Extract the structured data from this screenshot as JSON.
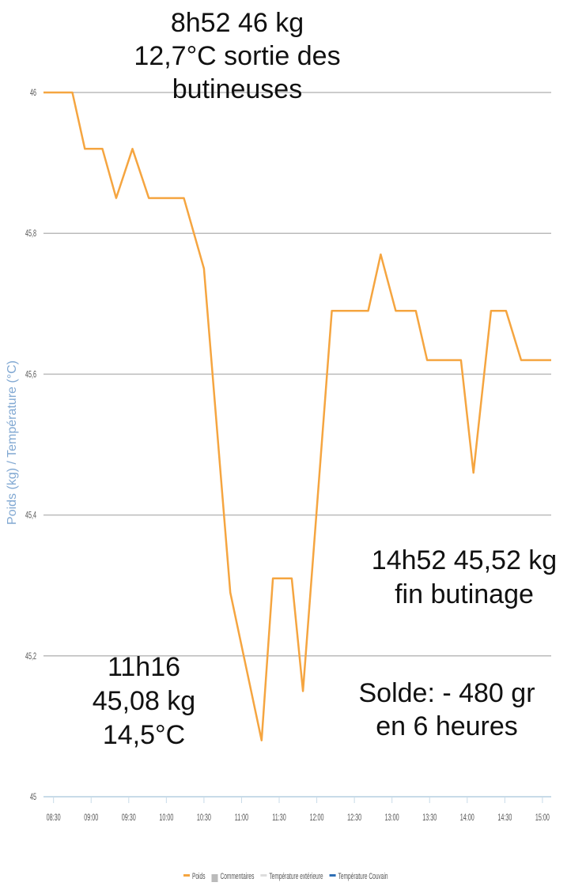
{
  "chart_data": {
    "type": "line",
    "y_label": "Poids (kg) / Température (°C)",
    "x": [
      "08:22",
      "08:45",
      "08:55",
      "09:09",
      "09:20",
      "09:33",
      "09:46",
      "10:14",
      "10:30",
      "10:51",
      "11:16",
      "11:25",
      "11:40",
      "11:49",
      "12:12",
      "12:41",
      "12:51",
      "13:03",
      "13:19",
      "13:28",
      "13:55",
      "14:05",
      "14:19",
      "14:31",
      "14:43",
      "15:07"
    ],
    "series": [
      {
        "name": "Poids",
        "color": "#f5a540",
        "values": [
          46,
          46,
          45.92,
          45.92,
          45.85,
          45.92,
          45.85,
          45.85,
          45.75,
          45.29,
          45.08,
          45.31,
          45.31,
          45.15,
          45.69,
          45.69,
          45.77,
          45.69,
          45.69,
          45.62,
          45.62,
          45.46,
          45.69,
          45.69,
          45.62,
          45.62
        ]
      }
    ],
    "legend": [
      {
        "name": "Poids",
        "color": "#f5a540"
      },
      {
        "name": "Commentaires",
        "color": "#bbbbbb"
      },
      {
        "name": "Température extérieure",
        "color": "#dddddd"
      },
      {
        "name": "Température Couvain",
        "color": "#2e6fb5"
      }
    ],
    "xlim": [
      "08:22",
      "15:07"
    ],
    "xticks": [
      "08:30",
      "09:00",
      "09:30",
      "10:00",
      "10:30",
      "11:00",
      "11:30",
      "12:00",
      "12:30",
      "13:00",
      "13:30",
      "14:00",
      "14:30",
      "15:00"
    ],
    "ylim": [
      45,
      46
    ],
    "yticks": [
      45,
      {
        "value": 45.2,
        "label": "45,2"
      },
      {
        "value": 45.4,
        "label": "45,4"
      },
      {
        "value": 45.6,
        "label": "45,6"
      },
      {
        "value": 45.8,
        "label": "45,8"
      },
      46
    ],
    "grid": true,
    "annotations": [
      [
        "8h52 46 kg",
        "12,7°C sortie des",
        "butineuses"
      ],
      [
        "11h16",
        "45,08 kg",
        "14,5°C"
      ],
      [
        "14h52 45,52 kg",
        "fin butinage"
      ],
      [
        "Solde: - 480 gr",
        "en 6 heures"
      ]
    ]
  }
}
